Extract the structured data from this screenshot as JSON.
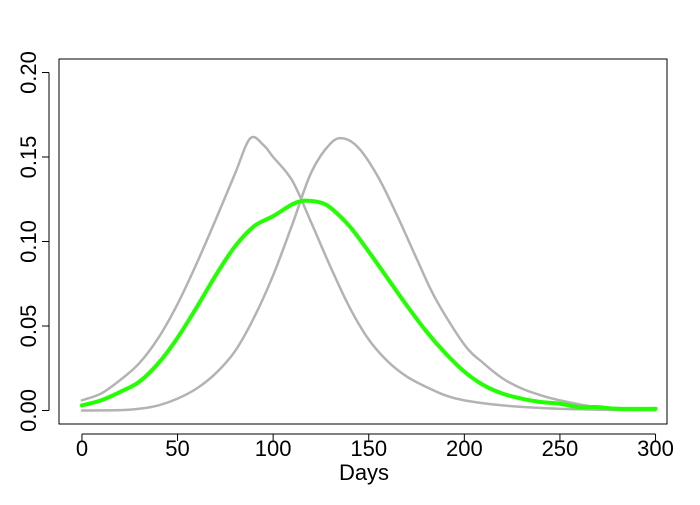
{
  "chart_data": {
    "type": "line",
    "title": "",
    "xlabel": "Days",
    "ylabel": "",
    "xlim": [
      -12,
      306
    ],
    "ylim": [
      -0.008,
      0.208
    ],
    "x_ticks": [
      0,
      50,
      100,
      150,
      200,
      250,
      300
    ],
    "y_ticks": [
      0.0,
      0.05,
      0.1,
      0.15,
      0.2
    ],
    "x_tick_labels": [
      "0",
      "50",
      "100",
      "150",
      "200",
      "250",
      "300"
    ],
    "y_tick_labels": [
      "0.00",
      "0.05",
      "0.10",
      "0.15",
      "0.20"
    ],
    "grid": false,
    "legend": "none",
    "series": [
      {
        "color": "#b3b3b3",
        "width": 2.5,
        "points": [
          [
            0,
            0.006
          ],
          [
            10,
            0.01
          ],
          [
            20,
            0.018
          ],
          [
            30,
            0.028
          ],
          [
            40,
            0.043
          ],
          [
            50,
            0.063
          ],
          [
            60,
            0.087
          ],
          [
            70,
            0.113
          ],
          [
            80,
            0.14
          ],
          [
            88,
            0.161
          ],
          [
            95,
            0.157
          ],
          [
            100,
            0.15
          ],
          [
            110,
            0.136
          ],
          [
            120,
            0.111
          ],
          [
            130,
            0.085
          ],
          [
            140,
            0.061
          ],
          [
            150,
            0.042
          ],
          [
            160,
            0.029
          ],
          [
            170,
            0.02
          ],
          [
            180,
            0.014
          ],
          [
            190,
            0.009
          ],
          [
            200,
            0.006
          ],
          [
            220,
            0.003
          ],
          [
            240,
            0.0015
          ],
          [
            260,
            0.0007
          ],
          [
            280,
            0.0003
          ],
          [
            300,
            0.0001
          ]
        ]
      },
      {
        "color": "#b3b3b3",
        "width": 2.5,
        "points": [
          [
            0,
            0.0
          ],
          [
            20,
            0.0002
          ],
          [
            30,
            0.001
          ],
          [
            40,
            0.003
          ],
          [
            50,
            0.007
          ],
          [
            60,
            0.013
          ],
          [
            70,
            0.022
          ],
          [
            80,
            0.035
          ],
          [
            90,
            0.055
          ],
          [
            100,
            0.08
          ],
          [
            110,
            0.11
          ],
          [
            120,
            0.141
          ],
          [
            130,
            0.158
          ],
          [
            137,
            0.161
          ],
          [
            145,
            0.155
          ],
          [
            155,
            0.138
          ],
          [
            165,
            0.115
          ],
          [
            175,
            0.09
          ],
          [
            185,
            0.066
          ],
          [
            200,
            0.039
          ],
          [
            210,
            0.028
          ],
          [
            220,
            0.019
          ],
          [
            230,
            0.013
          ],
          [
            240,
            0.009
          ],
          [
            250,
            0.006
          ],
          [
            270,
            0.002
          ],
          [
            300,
            0.001
          ]
        ]
      },
      {
        "color": "#22ff00",
        "width": 4,
        "points": [
          [
            0,
            0.003
          ],
          [
            10,
            0.006
          ],
          [
            20,
            0.011
          ],
          [
            30,
            0.017
          ],
          [
            40,
            0.028
          ],
          [
            50,
            0.043
          ],
          [
            60,
            0.061
          ],
          [
            70,
            0.08
          ],
          [
            80,
            0.097
          ],
          [
            90,
            0.109
          ],
          [
            100,
            0.115
          ],
          [
            110,
            0.122
          ],
          [
            115,
            0.124
          ],
          [
            120,
            0.124
          ],
          [
            125,
            0.123
          ],
          [
            130,
            0.12
          ],
          [
            140,
            0.109
          ],
          [
            150,
            0.094
          ],
          [
            160,
            0.078
          ],
          [
            170,
            0.062
          ],
          [
            180,
            0.047
          ],
          [
            190,
            0.034
          ],
          [
            200,
            0.023
          ],
          [
            210,
            0.015
          ],
          [
            220,
            0.01
          ],
          [
            230,
            0.007
          ],
          [
            240,
            0.005
          ],
          [
            250,
            0.004
          ],
          [
            260,
            0.002
          ],
          [
            270,
            0.002
          ],
          [
            280,
            0.001
          ],
          [
            300,
            0.001
          ]
        ]
      }
    ]
  }
}
